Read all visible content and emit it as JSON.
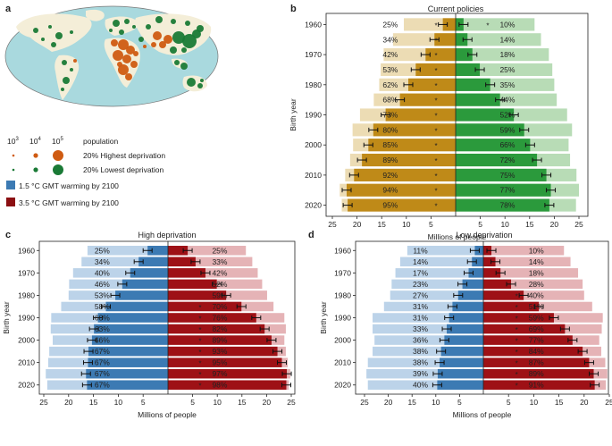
{
  "panels": {
    "a": {
      "letter": "a"
    },
    "b": {
      "letter": "b",
      "title": "Current policies"
    },
    "c": {
      "letter": "c",
      "title": "High deprivation"
    },
    "d": {
      "letter": "d",
      "title": "Low deprivation"
    }
  },
  "legend": {
    "size_ticks": [
      "10",
      "10",
      "10"
    ],
    "size_exps": [
      "3",
      "4",
      "5"
    ],
    "population_label": "population",
    "highest_label": "20% Highest deprivation",
    "lowest_label": "20% Lowest deprivation",
    "highest_color": "#cf5b12",
    "lowest_color": "#1a7a36",
    "blue_label": "1.5 °C GMT warming by 2100",
    "red_label": "3.5 °C GMT warming by 2100",
    "blue_color": "#3c7ab3",
    "red_color": "#8b0f12"
  },
  "axis": {
    "ylabel": "Birth year",
    "xlabel": "Millions of people",
    "left_ticks": [
      "25",
      "20",
      "15",
      "10",
      "5"
    ],
    "right_ticks": [
      "5",
      "10",
      "15",
      "20",
      "25"
    ],
    "star": "*"
  },
  "chart_data": [
    {
      "panel": "b",
      "type": "bar",
      "title": "Current policies",
      "xlabel": "Millions of people",
      "ylabel": "Birth year",
      "categories": [
        "1960",
        "1965",
        "1970",
        "1975",
        "1980",
        "1985",
        "1990",
        "1995",
        "2000",
        "2005",
        "2010",
        "2015",
        "2020"
      ],
      "year_labels": [
        "1960",
        "1970",
        "1980",
        "1990",
        "2000",
        "2010",
        "2020"
      ],
      "xlim": [
        0,
        25
      ],
      "colors": {
        "left_total": "#ecdcb4",
        "left_exposed": "#bf8a18",
        "right_total": "#b8dcb6",
        "right_exposed": "#2b9a3c"
      },
      "left_total": [
        10.5,
        12.7,
        14.6,
        15.2,
        15.5,
        16.6,
        19.4,
        20.9,
        20.8,
        21.4,
        22.4,
        23.5,
        23.1
      ],
      "left_exposed": [
        2.6,
        4.3,
        6.1,
        8.1,
        9.6,
        11.3,
        14.2,
        16.7,
        17.7,
        19.0,
        20.6,
        22.1,
        21.9
      ],
      "left_pct": [
        "25%",
        "34%",
        "42%",
        "53%",
        "62%",
        "68%",
        "73%",
        "80%",
        "85%",
        "89%",
        "92%",
        "94%",
        "95%"
      ],
      "right_total": [
        16.0,
        17.3,
        18.9,
        19.6,
        20.0,
        20.5,
        22.6,
        23.6,
        22.9,
        23.2,
        24.5,
        25.0,
        24.4
      ],
      "right_exposed": [
        1.6,
        2.4,
        3.4,
        4.9,
        7.0,
        9.0,
        11.8,
        13.9,
        15.1,
        16.5,
        18.4,
        19.3,
        19.0
      ],
      "right_pct": [
        "10%",
        "14%",
        "18%",
        "25%",
        "35%",
        "44%",
        "52%",
        "59%",
        "66%",
        "72%",
        "75%",
        "77%",
        "78%"
      ],
      "left_star": [
        true,
        true,
        true,
        true,
        true,
        true,
        true,
        true,
        true,
        true,
        true,
        true,
        true
      ],
      "right_star": [
        true,
        false,
        false,
        false,
        false,
        false,
        false,
        false,
        false,
        false,
        false,
        false,
        false
      ]
    },
    {
      "panel": "c",
      "type": "bar",
      "title": "High deprivation",
      "xlabel": "Millions of people",
      "ylabel": "Birth year",
      "categories": [
        "1960",
        "1965",
        "1970",
        "1975",
        "1980",
        "1985",
        "1990",
        "1995",
        "2000",
        "2005",
        "2010",
        "2015",
        "2020"
      ],
      "year_labels": [
        "1960",
        "1970",
        "1980",
        "1990",
        "2000",
        "2010",
        "2020"
      ],
      "xlim": [
        0,
        25
      ],
      "colors": {
        "left_total": "#bcd3e9",
        "left_exposed": "#3c7ab3",
        "right_total": "#e5b3b6",
        "right_exposed": "#9e1116"
      },
      "left_total": [
        16.2,
        17.4,
        19.1,
        19.9,
        20.0,
        21.5,
        23.5,
        23.6,
        23.2,
        23.9,
        24.1,
        24.6,
        24.3
      ],
      "left_exposed": [
        4.1,
        5.9,
        7.6,
        9.2,
        10.6,
        12.5,
        14.1,
        14.9,
        15.3,
        16.0,
        16.1,
        16.5,
        16.3
      ],
      "left_pct": [
        "25%",
        "34%",
        "40%",
        "46%",
        "53%",
        "58%",
        "60%",
        "63%",
        "66%",
        "67%",
        "67%",
        "67%",
        "67%"
      ],
      "right_total": [
        15.8,
        17.1,
        18.2,
        19.1,
        20.1,
        21.4,
        23.6,
        23.9,
        23.6,
        23.9,
        24.3,
        24.8,
        24.5
      ],
      "right_exposed": [
        4.0,
        5.6,
        7.6,
        9.9,
        11.8,
        14.9,
        17.9,
        19.6,
        21.0,
        22.2,
        23.1,
        24.1,
        24.0
      ],
      "right_pct": [
        "25%",
        "33%",
        "42%",
        "52%",
        "59%",
        "70%",
        "76%",
        "82%",
        "89%",
        "93%",
        "95%",
        "97%",
        "98%"
      ],
      "left_star": [
        false,
        false,
        false,
        false,
        false,
        false,
        false,
        false,
        false,
        false,
        false,
        false,
        false
      ],
      "right_star": [
        false,
        false,
        false,
        false,
        false,
        true,
        true,
        true,
        true,
        true,
        true,
        true,
        true
      ]
    },
    {
      "panel": "d",
      "type": "bar",
      "title": "Low deprivation",
      "xlabel": "Millions of people",
      "ylabel": "Birth year",
      "categories": [
        "1960",
        "1965",
        "1970",
        "1975",
        "1980",
        "1985",
        "1990",
        "1995",
        "2000",
        "2005",
        "2010",
        "2015",
        "2020"
      ],
      "year_labels": [
        "1960",
        "1970",
        "1980",
        "1990",
        "2000",
        "2010",
        "2020"
      ],
      "xlim": [
        0,
        25
      ],
      "colors": {
        "left_total": "#bcd3e9",
        "left_exposed": "#3c7ab3",
        "right_total": "#e5b3b6",
        "right_exposed": "#9e1116"
      },
      "left_total": [
        16.0,
        17.5,
        18.5,
        19.3,
        19.6,
        20.9,
        23.3,
        23.3,
        22.9,
        23.3,
        24.3,
        24.6,
        24.3
      ],
      "left_exposed": [
        1.8,
        2.4,
        3.1,
        4.4,
        5.3,
        6.5,
        7.2,
        7.7,
        8.2,
        8.9,
        9.2,
        9.6,
        9.7
      ],
      "left_pct": [
        "11%",
        "14%",
        "17%",
        "23%",
        "27%",
        "31%",
        "31%",
        "33%",
        "36%",
        "38%",
        "38%",
        "39%",
        "40%"
      ],
      "right_total": [
        16.0,
        17.3,
        18.8,
        19.7,
        20.0,
        21.6,
        23.7,
        23.5,
        23.0,
        23.4,
        24.2,
        24.6,
        24.3
      ],
      "right_exposed": [
        1.6,
        2.4,
        3.4,
        5.5,
        8.0,
        11.0,
        14.0,
        16.2,
        17.7,
        19.7,
        21.0,
        21.9,
        22.1
      ],
      "right_pct": [
        "10%",
        "14%",
        "18%",
        "28%",
        "40%",
        "51%",
        "59%",
        "69%",
        "77%",
        "84%",
        "87%",
        "89%",
        "91%"
      ],
      "left_star": [
        false,
        false,
        false,
        false,
        false,
        false,
        false,
        false,
        false,
        false,
        false,
        false,
        false
      ],
      "right_star": [
        false,
        false,
        false,
        false,
        true,
        true,
        true,
        true,
        true,
        true,
        true,
        true,
        true
      ]
    }
  ]
}
